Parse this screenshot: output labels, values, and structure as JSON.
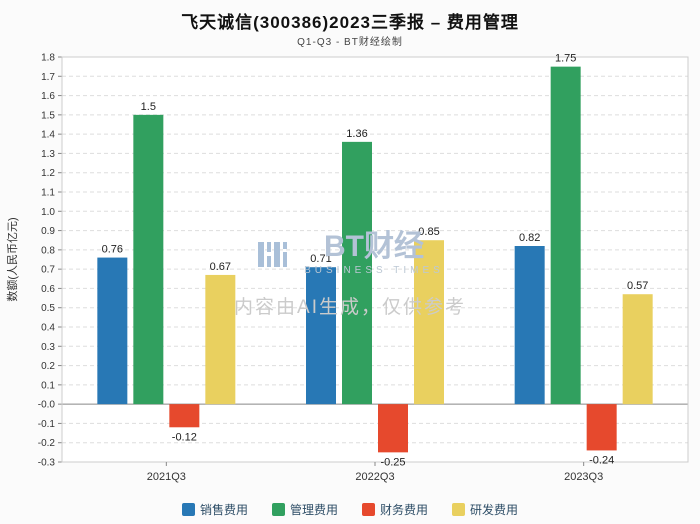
{
  "title": "飞天诚信(300386)2023三季报 – 费用管理",
  "subtitle": "Q1-Q3 - BT财经绘制",
  "chart_data": {
    "type": "bar",
    "categories": [
      "2021Q3",
      "2022Q3",
      "2023Q3"
    ],
    "series": [
      {
        "name": "销售费用",
        "color": "#2878b5",
        "values": [
          0.76,
          0.71,
          0.82
        ]
      },
      {
        "name": "管理费用",
        "color": "#31a05f",
        "values": [
          1.5,
          1.36,
          1.75
        ]
      },
      {
        "name": "财务费用",
        "color": "#e6492d",
        "values": [
          -0.12,
          -0.25,
          -0.24
        ]
      },
      {
        "name": "研发费用",
        "color": "#e9d05f",
        "values": [
          0.67,
          0.85,
          0.57
        ]
      }
    ],
    "title": "飞天诚信(300386)2023三季报 – 费用管理",
    "xlabel": "",
    "ylabel": "数额(人民币亿元)",
    "ylim": [
      -0.3,
      1.8
    ],
    "ytick_step": 0.1,
    "ytick_labels": [
      "1.8",
      "1.7",
      "1.6",
      "1.5",
      "1.4",
      "1.3",
      "1.2",
      "1.1",
      "1.0",
      "0.9",
      "0.8",
      "0.7",
      "0.6",
      "0.5",
      "0.4",
      "0.3",
      "0.2",
      "0.1",
      "-0.0",
      "-0.1",
      "-0.2",
      "-0.3"
    ],
    "grid": true,
    "legend_position": "bottom"
  },
  "watermark": {
    "brand": "BT财经",
    "brand_sub": "BUSINESS TIMES",
    "disclaimer": "内容由AI生成，仅供参考"
  }
}
